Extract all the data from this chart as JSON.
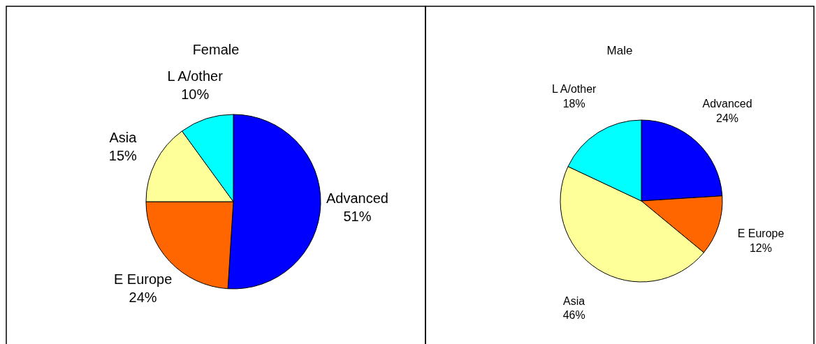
{
  "chart_data": [
    {
      "type": "pie",
      "title": "Female",
      "categories": [
        "Advanced",
        "E Europe",
        "Asia",
        "L A/other"
      ],
      "values": [
        51,
        24,
        15,
        10
      ],
      "colors": [
        "#0000ff",
        "#ff6600",
        "#ffff99",
        "#00ffff"
      ],
      "value_labels": [
        "51%",
        "24%",
        "15%",
        "10%"
      ]
    },
    {
      "type": "pie",
      "title": "Male",
      "categories": [
        "Advanced",
        "E Europe",
        "Asia",
        "L A/other"
      ],
      "values": [
        24,
        12,
        46,
        18
      ],
      "colors": [
        "#0000ff",
        "#ff6600",
        "#ffff99",
        "#00ffff"
      ],
      "value_labels": [
        "24%",
        "12%",
        "46%",
        "18%"
      ]
    }
  ]
}
